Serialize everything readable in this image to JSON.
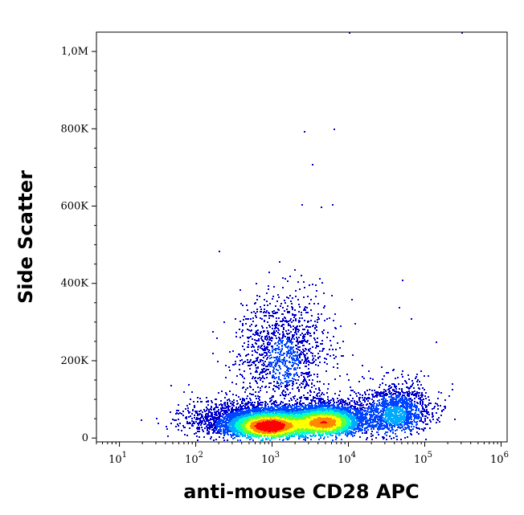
{
  "chart_data": {
    "type": "scatter",
    "subtype": "flow-cytometry-density-dot-plot",
    "title": "",
    "xlabel": "anti-mouse CD28 APC",
    "ylabel": "Side Scatter",
    "x_scale": "log",
    "xlim": [
      5,
      1200000
    ],
    "ylim": [
      -10000,
      1050000
    ],
    "x_ticks": [
      {
        "value": 10,
        "base": "10",
        "exp": "1"
      },
      {
        "value": 100,
        "base": "10",
        "exp": "2"
      },
      {
        "value": 1000,
        "base": "10",
        "exp": "3"
      },
      {
        "value": 10000,
        "base": "10",
        "exp": "4"
      },
      {
        "value": 100000,
        "base": "10",
        "exp": "5"
      },
      {
        "value": 1000000,
        "base": "10",
        "exp": "6"
      }
    ],
    "y_ticks": [
      {
        "value": 0,
        "label": "0"
      },
      {
        "value": 200000,
        "label": "200K"
      },
      {
        "value": 400000,
        "label": "400K"
      },
      {
        "value": 600000,
        "label": "600K"
      },
      {
        "value": 800000,
        "label": "800K"
      },
      {
        "value": 1000000,
        "label": "1,0M"
      }
    ],
    "grid": false,
    "legend": "none",
    "color_scale": [
      "#0000cc",
      "#0044ff",
      "#00aaff",
      "#00ffcc",
      "#66ff33",
      "#ffff00",
      "#ff8800",
      "#ff0000"
    ],
    "populations": [
      {
        "x_center": 900,
        "y_center": 32000,
        "x_spread_decades": 0.28,
        "y_spread": 22000,
        "weight": 0.38,
        "peak_density": 1.0
      },
      {
        "x_center": 5000,
        "y_center": 42000,
        "x_spread_decades": 0.25,
        "y_spread": 24000,
        "weight": 0.32,
        "peak_density": 0.85
      },
      {
        "x_center": 40000,
        "y_center": 60000,
        "x_spread_decades": 0.25,
        "y_spread": 40000,
        "weight": 0.12,
        "peak_density": 0.3
      },
      {
        "x_center": 1400,
        "y_center": 200000,
        "x_spread_decades": 0.3,
        "y_spread": 90000,
        "weight": 0.1,
        "peak_density": 0.15
      },
      {
        "x_center": 300,
        "y_center": 40000,
        "x_spread_decades": 0.35,
        "y_spread": 30000,
        "weight": 0.08,
        "peak_density": 0.1
      }
    ],
    "outlier_points": [
      {
        "x": 10000,
        "y": 1050000
      },
      {
        "x": 300000,
        "y": 1050000
      },
      {
        "x": 2600,
        "y": 795000
      },
      {
        "x": 6400,
        "y": 800000
      },
      {
        "x": 3300,
        "y": 710000
      },
      {
        "x": 2400,
        "y": 605000
      },
      {
        "x": 6100,
        "y": 605000
      },
      {
        "x": 4300,
        "y": 600000
      },
      {
        "x": 80,
        "y": 140000
      },
      {
        "x": 50000,
        "y": 410000
      },
      {
        "x": 11000,
        "y": 360000
      },
      {
        "x": 140000,
        "y": 250000
      },
      {
        "x": 180000,
        "y": 80000
      },
      {
        "x": 70,
        "y": 10000
      },
      {
        "x": 45000,
        "y": 340000
      },
      {
        "x": 65000,
        "y": 310000
      }
    ],
    "n_events": 12000
  }
}
